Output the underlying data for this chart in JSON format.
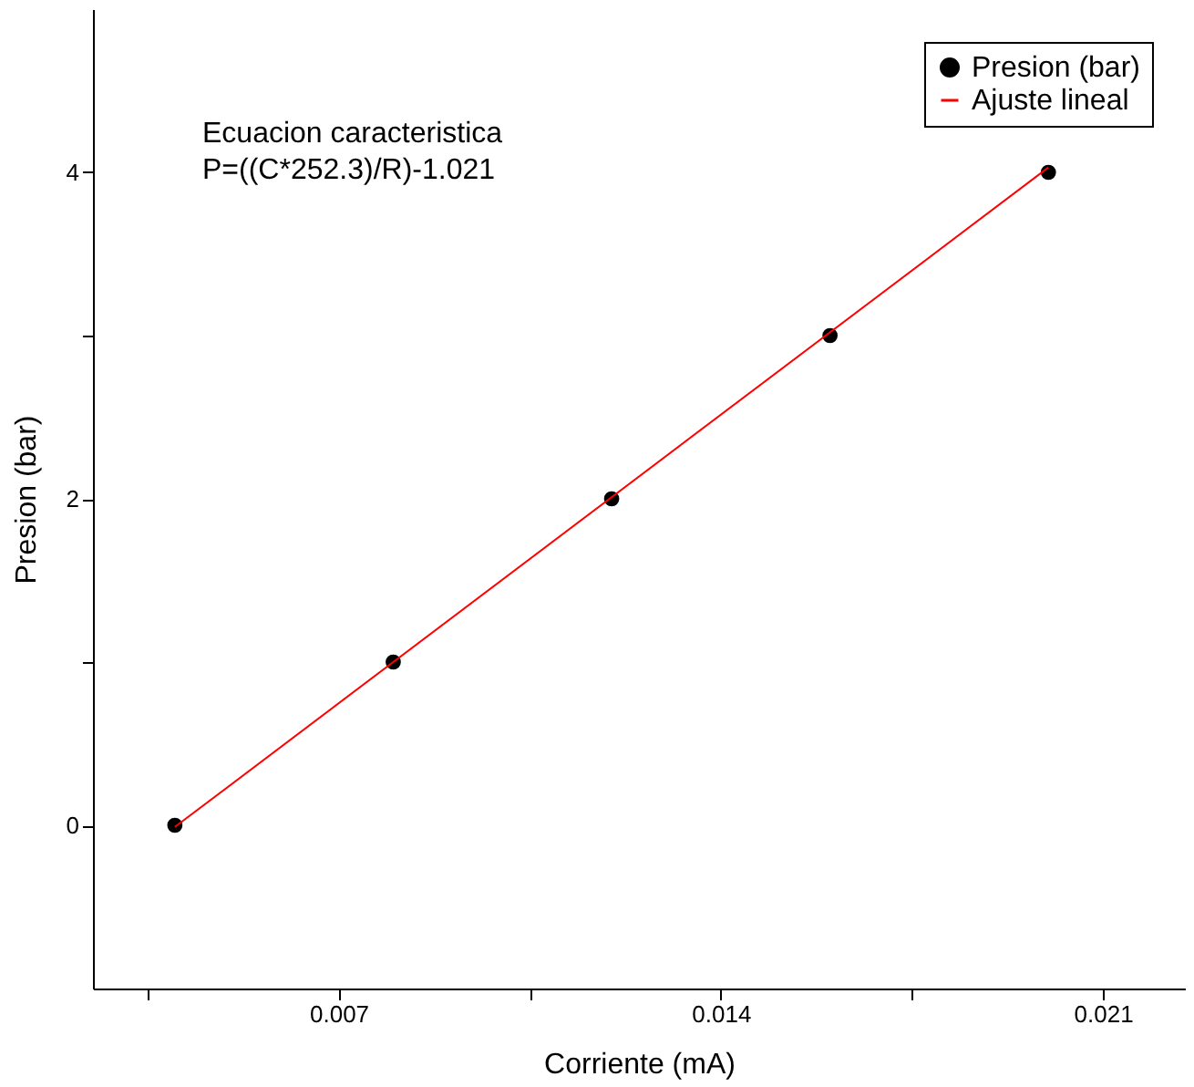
{
  "chart_data": {
    "type": "scatter",
    "xlabel": "Corriente (mA)",
    "ylabel": "Presion (bar)",
    "annotations": [
      "Ecuacion caracteristica",
      "P=((C*252.3)/R)-1.021"
    ],
    "series": [
      {
        "name": "Presion (bar)",
        "color": "#000000",
        "marker": "circle",
        "x": [
          0.004,
          0.008,
          0.012,
          0.016,
          0.02
        ],
        "values": [
          0,
          1,
          2,
          3,
          4
        ]
      },
      {
        "name": "Ajuste lineal",
        "type": "line",
        "color": "#ff0000",
        "line_style": "solid",
        "x": [
          0.004,
          0.02
        ],
        "values": [
          -0.01,
          4.03
        ]
      }
    ],
    "xlim": [
      0.0025,
      0.0225
    ],
    "xticks": [
      {
        "value": 0.0035,
        "label": null
      },
      0.007,
      {
        "value": 0.0105,
        "label": null
      },
      0.014,
      {
        "value": 0.0175,
        "label": null
      },
      0.021
    ],
    "ylim": [
      -1,
      5
    ],
    "yticks": [
      0,
      {
        "value": 1,
        "label": null
      },
      2,
      {
        "value": 3,
        "label": null
      },
      4
    ],
    "grid": false,
    "legend": "top right"
  }
}
